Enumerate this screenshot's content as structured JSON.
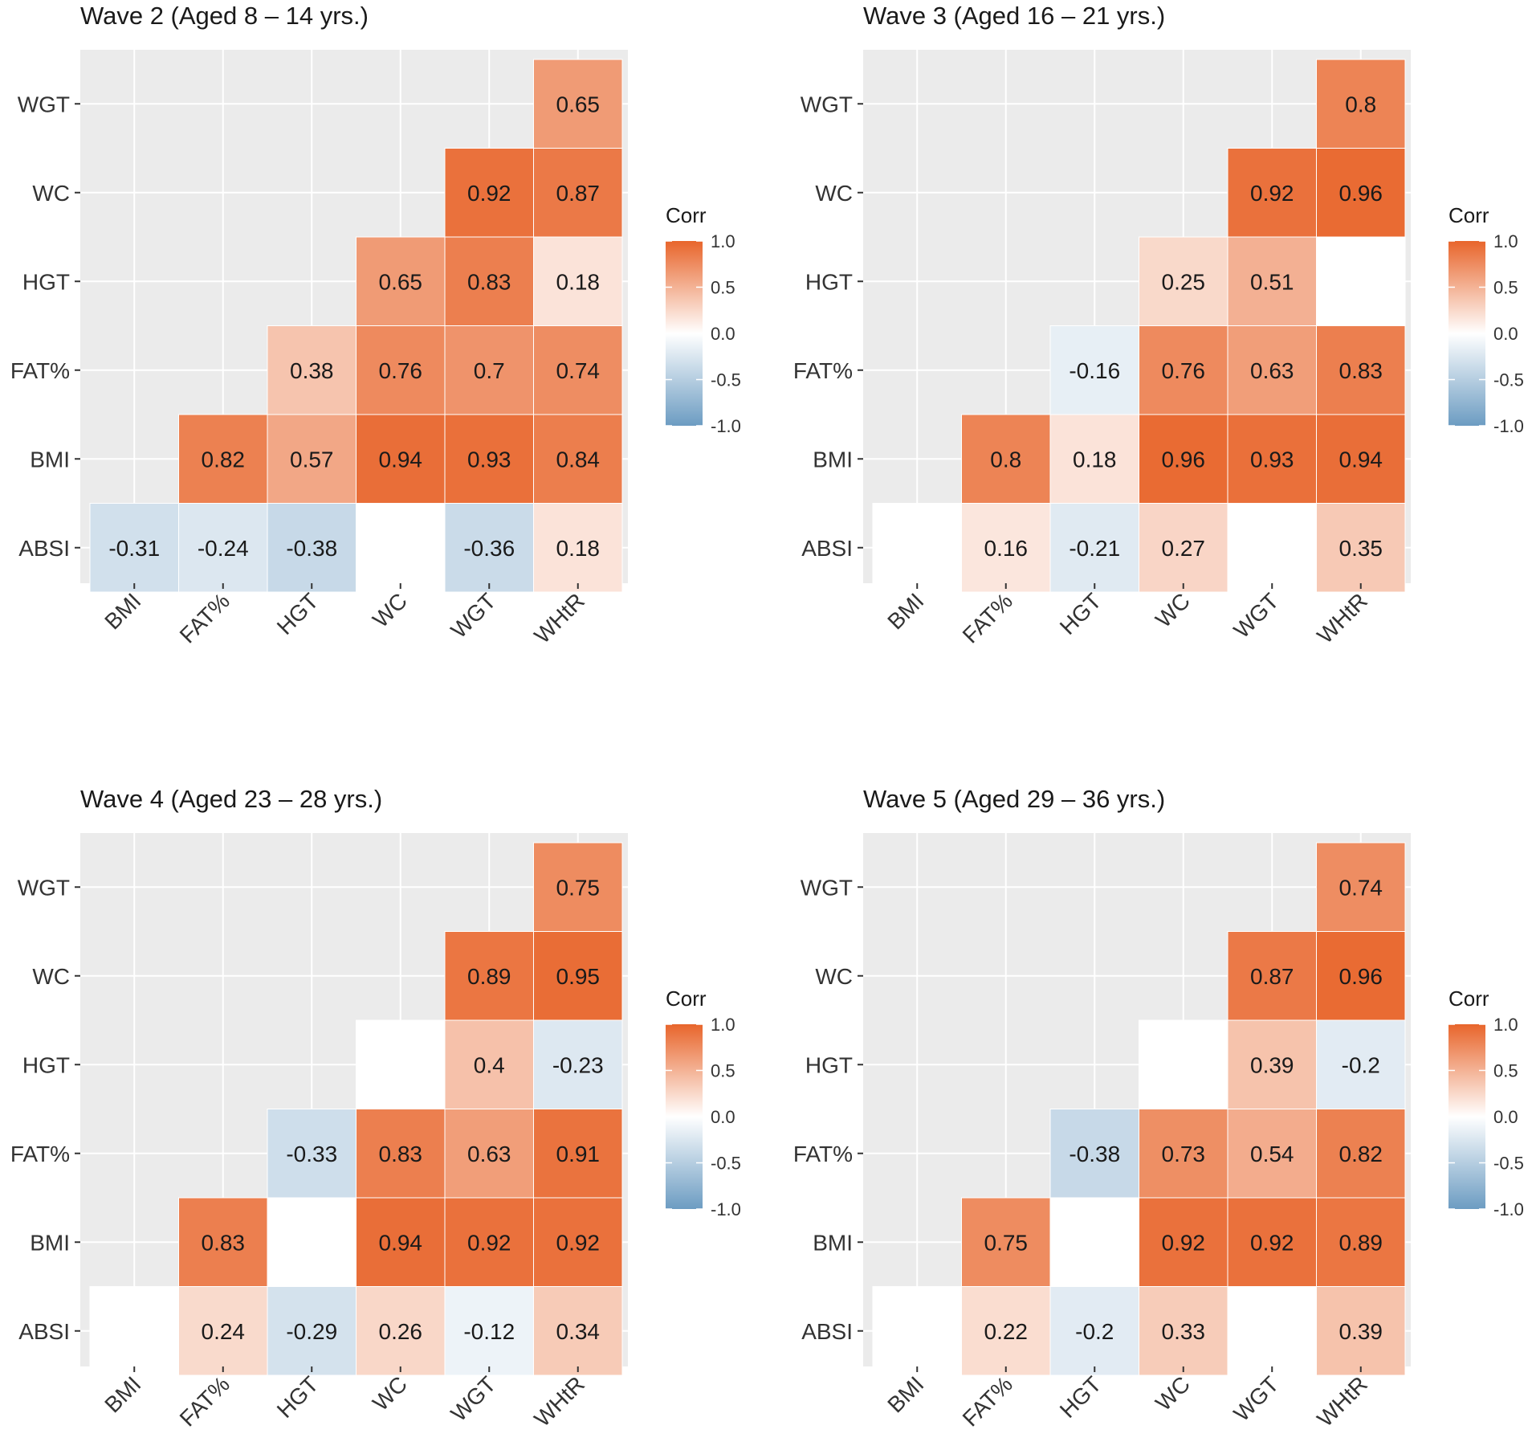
{
  "figure": {
    "legend_title": "Corr"
  },
  "colors": {
    "panel_bg": "#EBEBEB",
    "grid": "#FFFFFF",
    "high": "#E8652B",
    "mid": "#FFFFFF",
    "low": "#6C9CC2",
    "text": "#1A1A1A",
    "axis_text": "#333333"
  },
  "chart_data": [
    {
      "type": "heatmap",
      "title": "Wave 2 (Aged 8 – 14 yrs.)",
      "x_categories": [
        "BMI",
        "FAT%",
        "HGT",
        "WC",
        "WGT",
        "WHtR"
      ],
      "y_categories": [
        "ABSI",
        "BMI",
        "FAT%",
        "HGT",
        "WC",
        "WGT"
      ],
      "cells": [
        {
          "x": "BMI",
          "y": "ABSI",
          "value": -0.31
        },
        {
          "x": "FAT%",
          "y": "ABSI",
          "value": -0.24
        },
        {
          "x": "HGT",
          "y": "ABSI",
          "value": -0.38
        },
        {
          "x": "WC",
          "y": "ABSI",
          "value": null
        },
        {
          "x": "WGT",
          "y": "ABSI",
          "value": -0.36
        },
        {
          "x": "WHtR",
          "y": "ABSI",
          "value": 0.18
        },
        {
          "x": "FAT%",
          "y": "BMI",
          "value": 0.82
        },
        {
          "x": "HGT",
          "y": "BMI",
          "value": 0.57
        },
        {
          "x": "WC",
          "y": "BMI",
          "value": 0.94
        },
        {
          "x": "WGT",
          "y": "BMI",
          "value": 0.93
        },
        {
          "x": "WHtR",
          "y": "BMI",
          "value": 0.84
        },
        {
          "x": "HGT",
          "y": "FAT%",
          "value": 0.38
        },
        {
          "x": "WC",
          "y": "FAT%",
          "value": 0.76
        },
        {
          "x": "WGT",
          "y": "FAT%",
          "value": 0.7
        },
        {
          "x": "WHtR",
          "y": "FAT%",
          "value": 0.74
        },
        {
          "x": "WC",
          "y": "HGT",
          "value": 0.65
        },
        {
          "x": "WGT",
          "y": "HGT",
          "value": 0.83
        },
        {
          "x": "WHtR",
          "y": "HGT",
          "value": 0.18
        },
        {
          "x": "WGT",
          "y": "WC",
          "value": 0.92
        },
        {
          "x": "WHtR",
          "y": "WC",
          "value": 0.87
        },
        {
          "x": "WHtR",
          "y": "WGT",
          "value": 0.65
        }
      ],
      "legend": {
        "title": "Corr",
        "range": [
          -1.0,
          1.0
        ],
        "ticks": [
          "1.0",
          "0.5",
          "0.0",
          "-0.5",
          "-1.0"
        ]
      }
    },
    {
      "type": "heatmap",
      "title": "Wave 3 (Aged 16 – 21 yrs.)",
      "x_categories": [
        "BMI",
        "FAT%",
        "HGT",
        "WC",
        "WGT",
        "WHtR"
      ],
      "y_categories": [
        "ABSI",
        "BMI",
        "FAT%",
        "HGT",
        "WC",
        "WGT"
      ],
      "cells": [
        {
          "x": "BMI",
          "y": "ABSI",
          "value": null
        },
        {
          "x": "FAT%",
          "y": "ABSI",
          "value": 0.16
        },
        {
          "x": "HGT",
          "y": "ABSI",
          "value": -0.21
        },
        {
          "x": "WC",
          "y": "ABSI",
          "value": 0.27
        },
        {
          "x": "WGT",
          "y": "ABSI",
          "value": null
        },
        {
          "x": "WHtR",
          "y": "ABSI",
          "value": 0.35
        },
        {
          "x": "FAT%",
          "y": "BMI",
          "value": 0.8
        },
        {
          "x": "HGT",
          "y": "BMI",
          "value": 0.18
        },
        {
          "x": "WC",
          "y": "BMI",
          "value": 0.96
        },
        {
          "x": "WGT",
          "y": "BMI",
          "value": 0.93
        },
        {
          "x": "WHtR",
          "y": "BMI",
          "value": 0.94
        },
        {
          "x": "HGT",
          "y": "FAT%",
          "value": -0.16
        },
        {
          "x": "WC",
          "y": "FAT%",
          "value": 0.76
        },
        {
          "x": "WGT",
          "y": "FAT%",
          "value": 0.63
        },
        {
          "x": "WHtR",
          "y": "FAT%",
          "value": 0.83
        },
        {
          "x": "WC",
          "y": "HGT",
          "value": 0.25
        },
        {
          "x": "WGT",
          "y": "HGT",
          "value": 0.51
        },
        {
          "x": "WHtR",
          "y": "HGT",
          "value": null
        },
        {
          "x": "WGT",
          "y": "WC",
          "value": 0.92
        },
        {
          "x": "WHtR",
          "y": "WC",
          "value": 0.96
        },
        {
          "x": "WHtR",
          "y": "WGT",
          "value": 0.8
        }
      ],
      "legend": {
        "title": "Corr",
        "range": [
          -1.0,
          1.0
        ],
        "ticks": [
          "1.0",
          "0.5",
          "0.0",
          "-0.5",
          "-1.0"
        ]
      }
    },
    {
      "type": "heatmap",
      "title": "Wave 4 (Aged 23 – 28 yrs.)",
      "x_categories": [
        "BMI",
        "FAT%",
        "HGT",
        "WC",
        "WGT",
        "WHtR"
      ],
      "y_categories": [
        "ABSI",
        "BMI",
        "FAT%",
        "HGT",
        "WC",
        "WGT"
      ],
      "cells": [
        {
          "x": "BMI",
          "y": "ABSI",
          "value": null
        },
        {
          "x": "FAT%",
          "y": "ABSI",
          "value": 0.24
        },
        {
          "x": "HGT",
          "y": "ABSI",
          "value": -0.29
        },
        {
          "x": "WC",
          "y": "ABSI",
          "value": 0.26
        },
        {
          "x": "WGT",
          "y": "ABSI",
          "value": -0.12
        },
        {
          "x": "WHtR",
          "y": "ABSI",
          "value": 0.34
        },
        {
          "x": "FAT%",
          "y": "BMI",
          "value": 0.83
        },
        {
          "x": "HGT",
          "y": "BMI",
          "value": null
        },
        {
          "x": "WC",
          "y": "BMI",
          "value": 0.94
        },
        {
          "x": "WGT",
          "y": "BMI",
          "value": 0.92
        },
        {
          "x": "WHtR",
          "y": "BMI",
          "value": 0.92
        },
        {
          "x": "HGT",
          "y": "FAT%",
          "value": -0.33
        },
        {
          "x": "WC",
          "y": "FAT%",
          "value": 0.83
        },
        {
          "x": "WGT",
          "y": "FAT%",
          "value": 0.63
        },
        {
          "x": "WHtR",
          "y": "FAT%",
          "value": 0.91
        },
        {
          "x": "WC",
          "y": "HGT",
          "value": null
        },
        {
          "x": "WGT",
          "y": "HGT",
          "value": 0.4
        },
        {
          "x": "WHtR",
          "y": "HGT",
          "value": -0.23
        },
        {
          "x": "WGT",
          "y": "WC",
          "value": 0.89
        },
        {
          "x": "WHtR",
          "y": "WC",
          "value": 0.95
        },
        {
          "x": "WHtR",
          "y": "WGT",
          "value": 0.75
        }
      ],
      "legend": {
        "title": "Corr",
        "range": [
          -1.0,
          1.0
        ],
        "ticks": [
          "1.0",
          "0.5",
          "0.0",
          "-0.5",
          "-1.0"
        ]
      }
    },
    {
      "type": "heatmap",
      "title": "Wave 5 (Aged 29 – 36 yrs.)",
      "x_categories": [
        "BMI",
        "FAT%",
        "HGT",
        "WC",
        "WGT",
        "WHtR"
      ],
      "y_categories": [
        "ABSI",
        "BMI",
        "FAT%",
        "HGT",
        "WC",
        "WGT"
      ],
      "cells": [
        {
          "x": "BMI",
          "y": "ABSI",
          "value": null
        },
        {
          "x": "FAT%",
          "y": "ABSI",
          "value": 0.22
        },
        {
          "x": "HGT",
          "y": "ABSI",
          "value": -0.2
        },
        {
          "x": "WC",
          "y": "ABSI",
          "value": 0.33
        },
        {
          "x": "WGT",
          "y": "ABSI",
          "value": null
        },
        {
          "x": "WHtR",
          "y": "ABSI",
          "value": 0.39
        },
        {
          "x": "FAT%",
          "y": "BMI",
          "value": 0.75
        },
        {
          "x": "HGT",
          "y": "BMI",
          "value": null
        },
        {
          "x": "WC",
          "y": "BMI",
          "value": 0.92
        },
        {
          "x": "WGT",
          "y": "BMI",
          "value": 0.92
        },
        {
          "x": "WHtR",
          "y": "BMI",
          "value": 0.89
        },
        {
          "x": "HGT",
          "y": "FAT%",
          "value": -0.38
        },
        {
          "x": "WC",
          "y": "FAT%",
          "value": 0.73
        },
        {
          "x": "WGT",
          "y": "FAT%",
          "value": 0.54
        },
        {
          "x": "WHtR",
          "y": "FAT%",
          "value": 0.82
        },
        {
          "x": "WC",
          "y": "HGT",
          "value": null
        },
        {
          "x": "WGT",
          "y": "HGT",
          "value": 0.39
        },
        {
          "x": "WHtR",
          "y": "HGT",
          "value": -0.2
        },
        {
          "x": "WGT",
          "y": "WC",
          "value": 0.87
        },
        {
          "x": "WHtR",
          "y": "WC",
          "value": 0.96
        },
        {
          "x": "WHtR",
          "y": "WGT",
          "value": 0.74
        }
      ],
      "legend": {
        "title": "Corr",
        "range": [
          -1.0,
          1.0
        ],
        "ticks": [
          "1.0",
          "0.5",
          "0.0",
          "-0.5",
          "-1.0"
        ]
      }
    }
  ]
}
